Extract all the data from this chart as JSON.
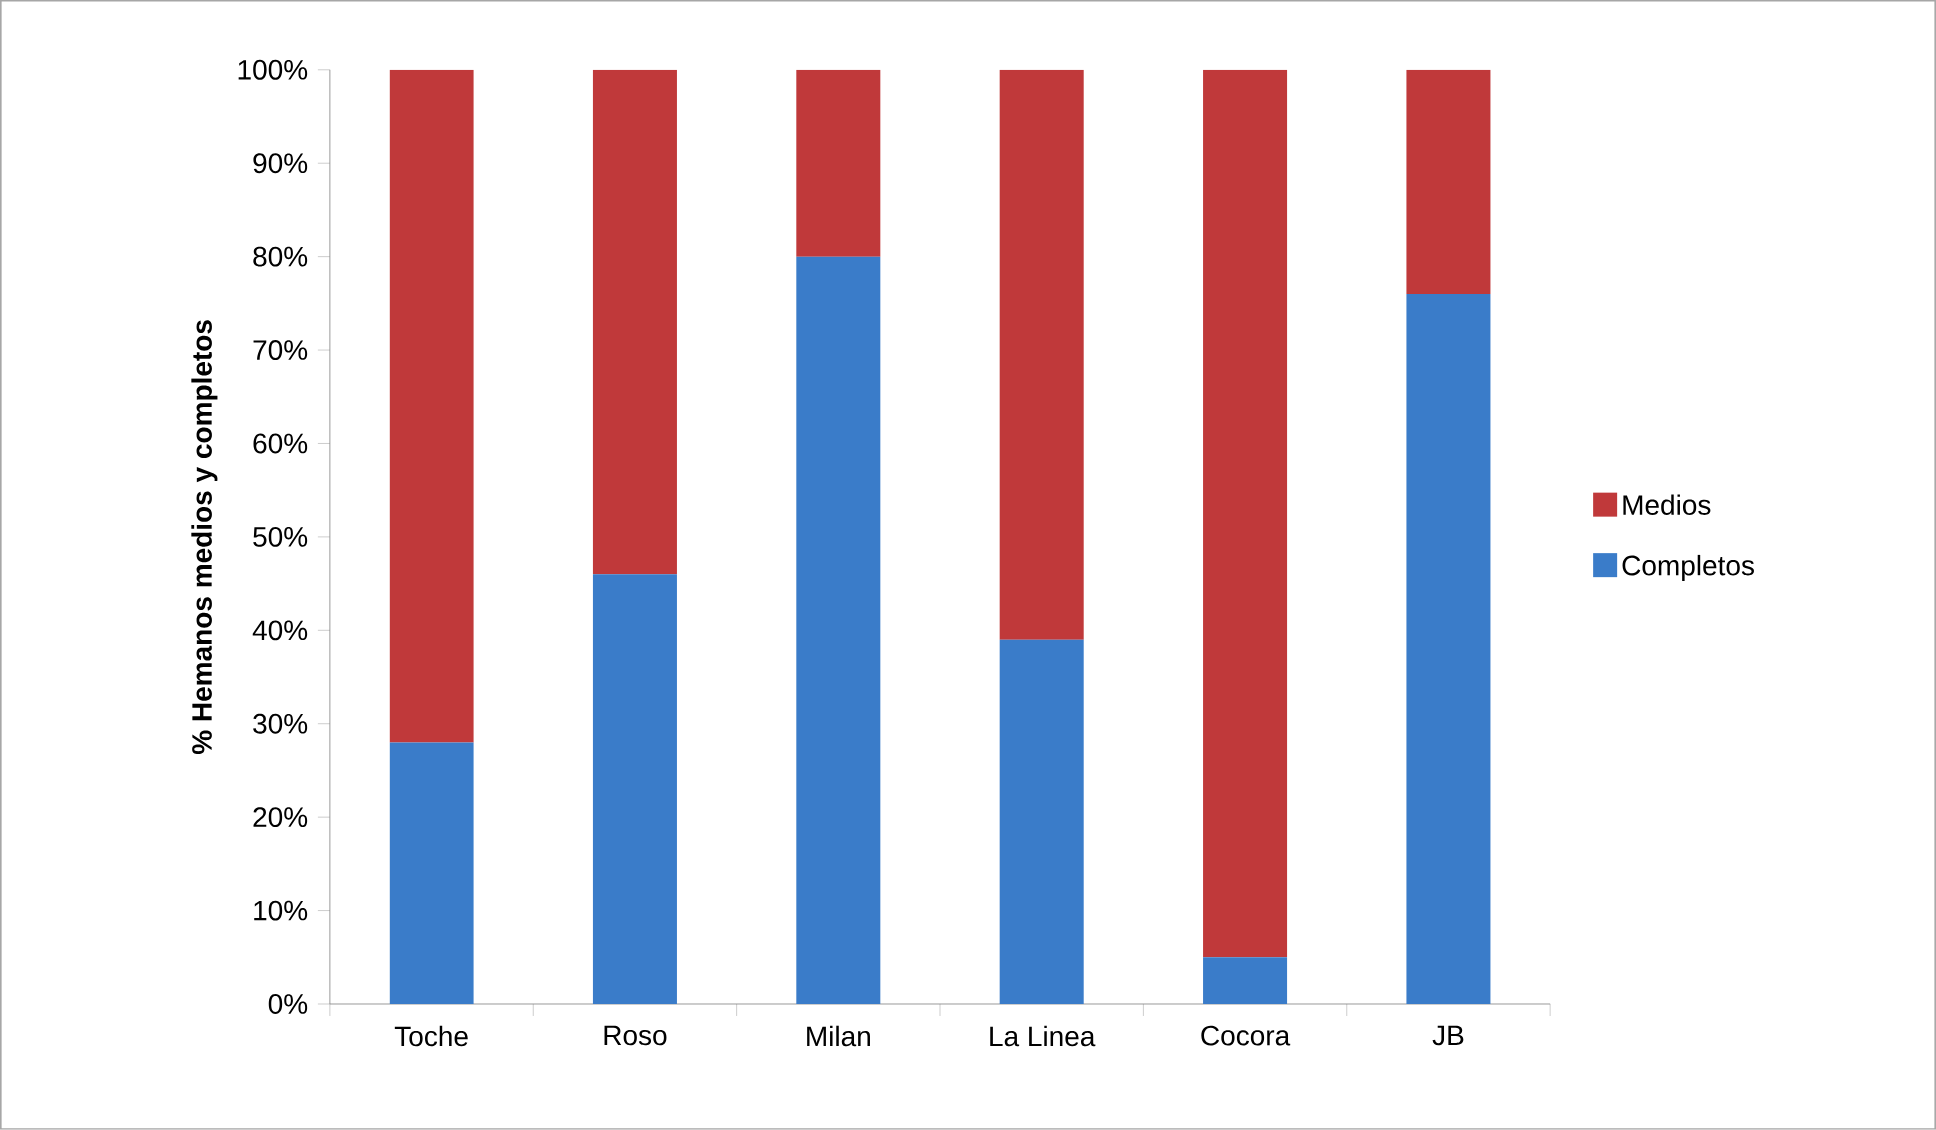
{
  "chart_data": {
    "type": "bar",
    "stacked": true,
    "ylabel": "% Hemanos  medios y completos",
    "categories": [
      "Toche",
      "Roso",
      "Milan",
      "La Linea",
      "Cocora",
      "JB"
    ],
    "series": [
      {
        "name": "Completos",
        "color": "#3a7cc9",
        "values": [
          28,
          46,
          80,
          39,
          5,
          76
        ]
      },
      {
        "name": "Medios",
        "color": "#c0393a",
        "values": [
          72,
          54,
          20,
          61,
          95,
          24
        ]
      }
    ],
    "ylim": [
      0,
      100
    ],
    "yticks": [
      {
        "value": 0,
        "label": "0%"
      },
      {
        "value": 10,
        "label": "10%"
      },
      {
        "value": 20,
        "label": "20%"
      },
      {
        "value": 30,
        "label": "30%"
      },
      {
        "value": 40,
        "label": "40%"
      },
      {
        "value": 50,
        "label": "50%"
      },
      {
        "value": 60,
        "label": "60%"
      },
      {
        "value": 70,
        "label": "70%"
      },
      {
        "value": 80,
        "label": "80%"
      },
      {
        "value": 90,
        "label": "90%"
      },
      {
        "value": 100,
        "label": "100%"
      }
    ],
    "legend": "right"
  }
}
